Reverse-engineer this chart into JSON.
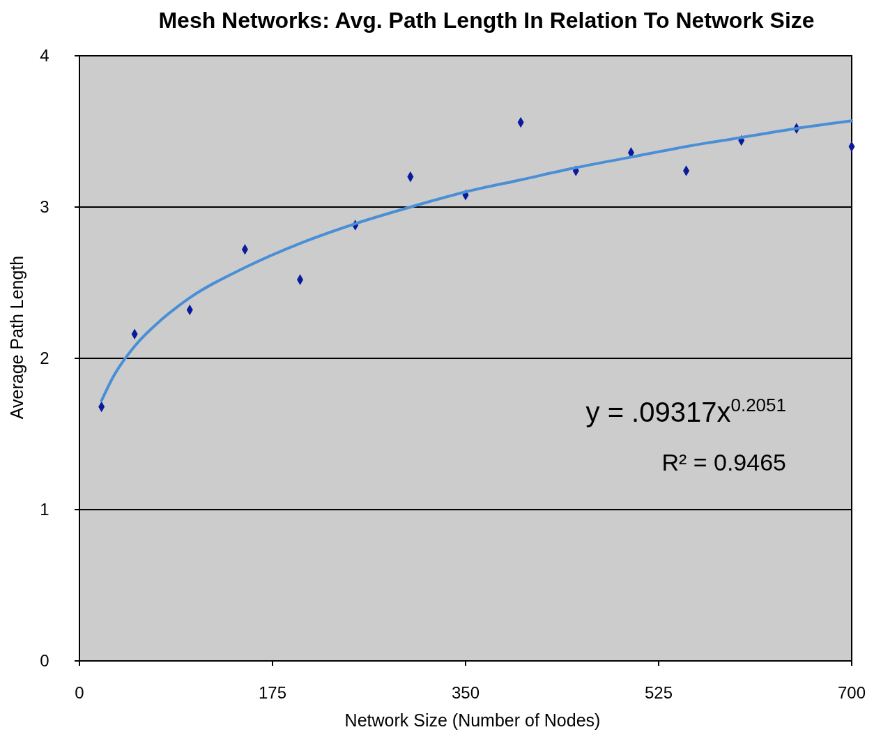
{
  "chart_data": {
    "type": "scatter",
    "title": "Mesh Networks: Avg. Path Length In Relation To Network Size",
    "xlabel": "Network Size (Number of Nodes)",
    "ylabel": "Average Path Length",
    "xlim": [
      0,
      700
    ],
    "xticks": [
      0,
      175,
      350,
      525,
      700
    ],
    "ylim": [
      0,
      4
    ],
    "yticks": [
      0,
      1,
      2,
      3,
      4
    ],
    "grid": "y",
    "marker": "diamond",
    "annotations": [
      "y = .09317x$^{0.2051}$",
      "R² = 0.9465"
    ],
    "series": [
      {
        "color": "#0a1a9c",
        "x": [
          20,
          50,
          100,
          150,
          200,
          250,
          300,
          350,
          400,
          450,
          500,
          550,
          600,
          650,
          700
        ],
        "values": [
          1.68,
          2.16,
          2.32,
          2.72,
          2.52,
          2.88,
          3.2,
          3.08,
          3.56,
          3.24,
          3.36,
          3.24,
          3.44,
          3.52,
          3.4
        ]
      },
      {
        "type": "line",
        "color": "#4a8fd6",
        "line_style": "solid",
        "marker": "none",
        "x": [
          20,
          30,
          50,
          75,
          100,
          150,
          200,
          250,
          300,
          350,
          400,
          450,
          500,
          550,
          600,
          650,
          700
        ],
        "values": [
          1.72,
          1.87,
          2.08,
          2.26,
          2.4,
          2.6,
          2.76,
          2.89,
          3.0,
          3.1,
          3.18,
          3.26,
          3.33,
          3.4,
          3.46,
          3.52,
          3.57
        ]
      }
    ]
  }
}
